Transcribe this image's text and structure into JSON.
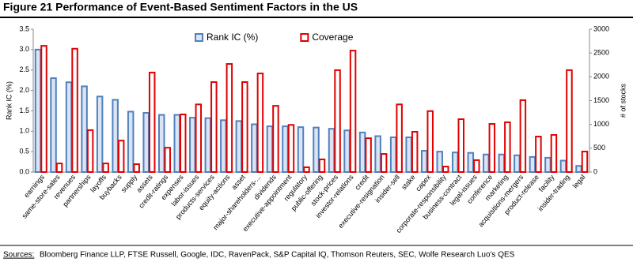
{
  "chart_data": {
    "type": "bar",
    "title": "Figure 21 Performance of Event-Based Sentiment Factors in the US",
    "source_label": "Sources:",
    "source": "Bloomberg Finance LLP, FTSE Russell, Google, IDC, RavenPack, S&P Capital IQ, Thomson Reuters, SEC, Wolfe Research Luo's QES",
    "ylabel": "Rank IC (%)",
    "y2label": "# of stocks",
    "categories": [
      "earnings",
      "same-store-sales",
      "revenues",
      "partnerships",
      "layoffs",
      "buybacks",
      "supply",
      "assets",
      "credit-ratings",
      "expenses",
      "labor-issues",
      "products-services",
      "equity-actions",
      "asset",
      "major-shareholders-...",
      "dividends",
      "executive-appointment",
      "regulatory",
      "public-offering",
      "stock-prices",
      "investor-relations",
      "credit",
      "executive-resignation",
      "insider-sell",
      "stake",
      "capex",
      "corporate-responsibility",
      "business-contract",
      "legal-issues",
      "conference",
      "marketing",
      "acquisitions-mergers",
      "product-release",
      "facility",
      "insider-trading",
      "legal"
    ],
    "series": [
      {
        "name": "Rank IC (%)",
        "color": "#4f81bd",
        "fill": "#dce4f4",
        "values": [
          3.0,
          2.3,
          2.2,
          2.1,
          1.85,
          1.77,
          1.48,
          1.45,
          1.4,
          1.4,
          1.33,
          1.32,
          1.27,
          1.25,
          1.17,
          1.12,
          1.12,
          1.1,
          1.09,
          1.06,
          1.02,
          0.97,
          0.88,
          0.85,
          0.85,
          0.52,
          0.5,
          0.48,
          0.47,
          0.43,
          0.43,
          0.41,
          0.37,
          0.35,
          0.28,
          0.15
        ]
      },
      {
        "name": "Coverage",
        "color": "#e00000",
        "axis": "y2",
        "values": [
          2650,
          180,
          2590,
          880,
          180,
          660,
          165,
          2090,
          510,
          1210,
          1420,
          1890,
          2270,
          1890,
          2070,
          1390,
          990,
          100,
          265,
          2140,
          2550,
          710,
          380,
          1420,
          845,
          1280,
          115,
          1110,
          250,
          1010,
          1045,
          1510,
          745,
          780,
          2140,
          430
        ]
      }
    ],
    "ylim": [
      0,
      3.5
    ],
    "yticks": [
      {
        "value": 0,
        "label": "0.0"
      },
      {
        "value": 0.5,
        "label": "0.5"
      },
      {
        "value": 1,
        "label": "1.0"
      },
      {
        "value": 1.5,
        "label": "1.5"
      },
      {
        "value": 2,
        "label": "2.0"
      },
      {
        "value": 2.5,
        "label": "2.5"
      },
      {
        "value": 3,
        "label": "3.0"
      },
      {
        "value": 3.5,
        "label": "3.5"
      }
    ],
    "y2lim": [
      0,
      3000
    ],
    "y2ticks": [
      0,
      500,
      1000,
      1500,
      2000,
      2500,
      3000
    ],
    "legend": "top"
  }
}
